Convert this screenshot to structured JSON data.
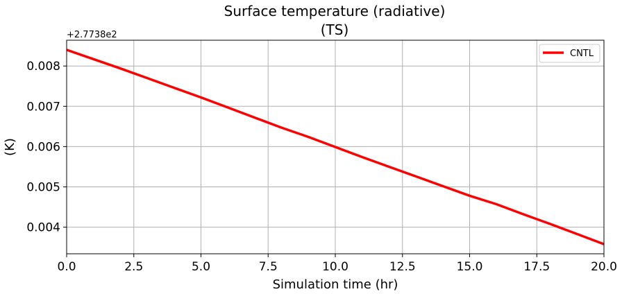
{
  "chart_data": {
    "type": "line",
    "title": "Surface temperature (radiative)",
    "subtitle": "(TS)",
    "xlabel": "Simulation time (hr)",
    "ylabel": "(K)",
    "y_offset_label": "+2.7738e2",
    "xlim": [
      0,
      20
    ],
    "ylim": [
      0.00334,
      0.00864
    ],
    "grid": true,
    "legend_position": "top-right",
    "x_ticks": [
      0,
      2.5,
      5,
      7.5,
      10,
      12.5,
      15,
      17.5,
      20
    ],
    "x_tick_labels": [
      "0.0",
      "2.5",
      "5.0",
      "7.5",
      "10.0",
      "12.5",
      "15.0",
      "17.5",
      "20.0"
    ],
    "y_ticks": [
      0.004,
      0.005,
      0.006,
      0.007,
      0.008
    ],
    "y_tick_labels": [
      "0.004",
      "0.005",
      "0.006",
      "0.007",
      "0.008"
    ],
    "series": [
      {
        "name": "CNTL",
        "color": "#ff0000",
        "x": [
          0,
          1,
          2,
          3,
          4,
          5,
          6,
          7,
          8,
          9,
          10,
          11,
          12,
          13,
          14,
          15,
          16,
          17,
          18,
          19,
          20
        ],
        "y": [
          0.0084,
          0.00817,
          0.00794,
          0.0077,
          0.00746,
          0.00722,
          0.00697,
          0.00672,
          0.00647,
          0.00624,
          0.00599,
          0.00574,
          0.0055,
          0.00526,
          0.00502,
          0.00478,
          0.00457,
          0.00432,
          0.00408,
          0.00383,
          0.00358
        ]
      }
    ]
  }
}
